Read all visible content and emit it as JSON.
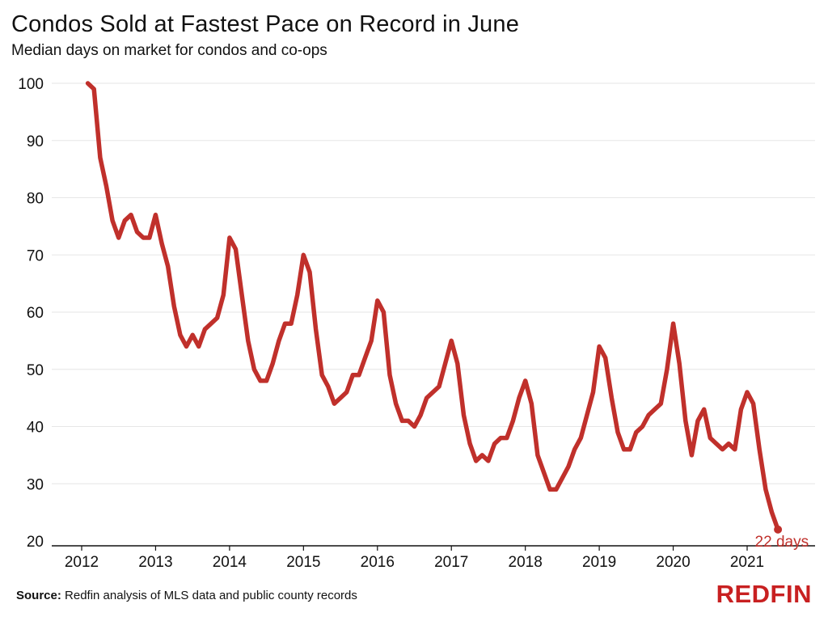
{
  "title": "Condos Sold at Fastest Pace on Record in June",
  "subtitle": "Median days on market for condos and co-ops",
  "source_label": "Source:",
  "source_text": "Redfin analysis of MLS data and public county records",
  "logo": "REDFIN",
  "colors": {
    "line": "#c0302b",
    "grid": "#e6e6e6",
    "axis": "#111111",
    "logo": "#c82021"
  },
  "chart_data": {
    "type": "line",
    "title": "Condos Sold at Fastest Pace on Record in June",
    "subtitle": "Median days on market for condos and co-ops",
    "xlabel": "",
    "ylabel": "",
    "ylim": [
      20,
      100
    ],
    "yticks": [
      100,
      90,
      80,
      70,
      60,
      50,
      40,
      30,
      20
    ],
    "xticks": [
      "2012",
      "2013",
      "2014",
      "2015",
      "2016",
      "2017",
      "2018",
      "2019",
      "2020",
      "2021"
    ],
    "xlim": [
      "2011-11",
      "2021-12"
    ],
    "grid": "horizontal",
    "series": [
      {
        "x": [
          "2012-02",
          "2012-03",
          "2012-04",
          "2012-05",
          "2012-06",
          "2012-07",
          "2012-08",
          "2012-09",
          "2012-10",
          "2012-11",
          "2012-12",
          "2013-01",
          "2013-02",
          "2013-03",
          "2013-04",
          "2013-05",
          "2013-06",
          "2013-07",
          "2013-08",
          "2013-09",
          "2013-10",
          "2013-11",
          "2013-12",
          "2014-01",
          "2014-02",
          "2014-03",
          "2014-04",
          "2014-05",
          "2014-06",
          "2014-07",
          "2014-08",
          "2014-09",
          "2014-10",
          "2014-11",
          "2014-12",
          "2015-01",
          "2015-02",
          "2015-03",
          "2015-04",
          "2015-05",
          "2015-06",
          "2015-07",
          "2015-08",
          "2015-09",
          "2015-10",
          "2015-11",
          "2015-12",
          "2016-01",
          "2016-02",
          "2016-03",
          "2016-04",
          "2016-05",
          "2016-06",
          "2016-07",
          "2016-08",
          "2016-09",
          "2016-10",
          "2016-11",
          "2016-12",
          "2017-01",
          "2017-02",
          "2017-03",
          "2017-04",
          "2017-05",
          "2017-06",
          "2017-07",
          "2017-08",
          "2017-09",
          "2017-10",
          "2017-11",
          "2017-12",
          "2018-01",
          "2018-02",
          "2018-03",
          "2018-04",
          "2018-05",
          "2018-06",
          "2018-07",
          "2018-08",
          "2018-09",
          "2018-10",
          "2018-11",
          "2018-12",
          "2019-01",
          "2019-02",
          "2019-03",
          "2019-04",
          "2019-05",
          "2019-06",
          "2019-07",
          "2019-08",
          "2019-09",
          "2019-10",
          "2019-11",
          "2019-12",
          "2020-01",
          "2020-02",
          "2020-03",
          "2020-04",
          "2020-05",
          "2020-06",
          "2020-07",
          "2020-08",
          "2020-09",
          "2020-10",
          "2020-11",
          "2020-12",
          "2021-01",
          "2021-02",
          "2021-03",
          "2021-04",
          "2021-05",
          "2021-06"
        ],
        "values": [
          100,
          99,
          87,
          82,
          76,
          73,
          76,
          77,
          74,
          73,
          73,
          77,
          72,
          68,
          61,
          56,
          54,
          56,
          54,
          57,
          58,
          59,
          63,
          73,
          71,
          63,
          55,
          50,
          48,
          48,
          51,
          55,
          58,
          58,
          63,
          70,
          67,
          57,
          49,
          47,
          44,
          45,
          46,
          49,
          49,
          52,
          55,
          62,
          60,
          49,
          44,
          41,
          41,
          40,
          42,
          45,
          46,
          47,
          51,
          55,
          51,
          42,
          37,
          34,
          35,
          34,
          37,
          38,
          38,
          41,
          45,
          48,
          44,
          35,
          32,
          29,
          29,
          31,
          33,
          36,
          38,
          42,
          46,
          54,
          52,
          45,
          39,
          36,
          36,
          39,
          40,
          42,
          43,
          44,
          50,
          58,
          51,
          41,
          35,
          41,
          43,
          38,
          37,
          36,
          37,
          36,
          43,
          46,
          44,
          36,
          29,
          25,
          22
        ]
      }
    ],
    "annotations": [
      {
        "x": "2021-06",
        "y": 22,
        "text": "22 days"
      }
    ]
  }
}
